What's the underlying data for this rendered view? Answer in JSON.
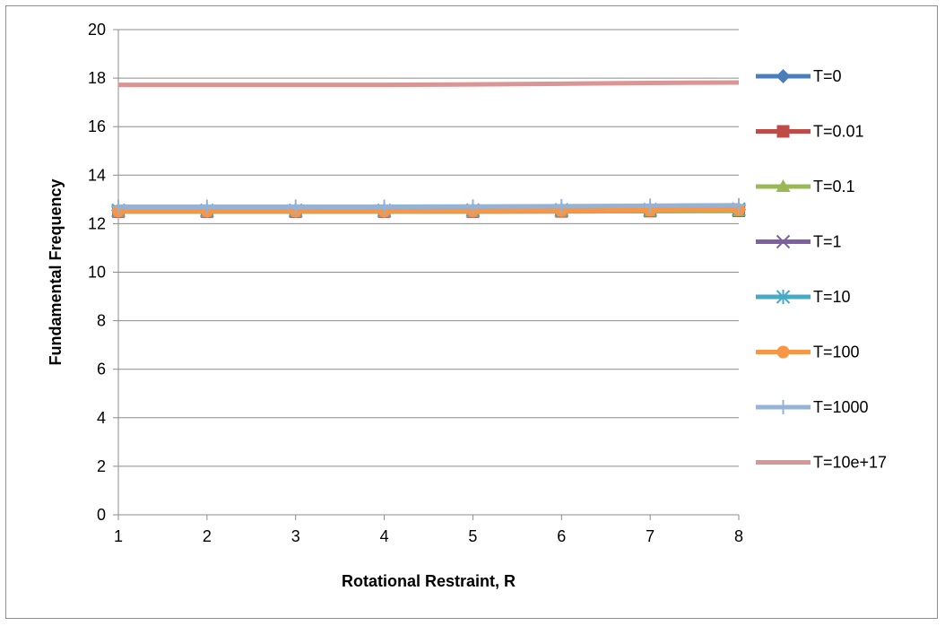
{
  "chart_data": {
    "type": "line",
    "title": "",
    "xlabel": "Rotational Restraint, R",
    "ylabel": "Fundamental Frequency",
    "xlim": [
      1,
      8
    ],
    "ylim": [
      0,
      20
    ],
    "x_ticks": [
      "1",
      "2",
      "3",
      "4",
      "5",
      "6",
      "7",
      "8"
    ],
    "y_ticks": [
      "0",
      "2",
      "4",
      "6",
      "8",
      "10",
      "12",
      "14",
      "16",
      "18",
      "20"
    ],
    "grid": "horizontal",
    "legend_position": "right",
    "x": [
      1,
      2,
      3,
      4,
      5,
      6,
      7,
      8
    ],
    "series": [
      {
        "name": "T=0",
        "color": "#4a7ebb",
        "marker": "diamond",
        "values": [
          12.55,
          12.55,
          12.55,
          12.55,
          12.55,
          12.56,
          12.57,
          12.58
        ]
      },
      {
        "name": "T=0.01",
        "color": "#be4b48",
        "marker": "square",
        "values": [
          12.5,
          12.5,
          12.5,
          12.5,
          12.5,
          12.51,
          12.52,
          12.53
        ]
      },
      {
        "name": "T=0.1",
        "color": "#98b954",
        "marker": "triangle",
        "values": [
          12.5,
          12.5,
          12.5,
          12.5,
          12.5,
          12.51,
          12.52,
          12.53
        ]
      },
      {
        "name": "T=1",
        "color": "#7d60a0",
        "marker": "x",
        "values": [
          12.55,
          12.55,
          12.55,
          12.55,
          12.56,
          12.57,
          12.58,
          12.6
        ]
      },
      {
        "name": "T=10",
        "color": "#46aac5",
        "marker": "star",
        "values": [
          12.55,
          12.55,
          12.55,
          12.55,
          12.56,
          12.57,
          12.58,
          12.6
        ]
      },
      {
        "name": "T=100",
        "color": "#f79646",
        "marker": "circle",
        "values": [
          12.52,
          12.52,
          12.52,
          12.52,
          12.53,
          12.54,
          12.56,
          12.58
        ]
      },
      {
        "name": "T=1000",
        "color": "#95b3d7",
        "marker": "plus",
        "values": [
          12.7,
          12.7,
          12.7,
          12.7,
          12.71,
          12.72,
          12.74,
          12.76
        ]
      },
      {
        "name": "T=10e+17",
        "color": "#d99694",
        "marker": "none",
        "values": [
          17.72,
          17.72,
          17.72,
          17.72,
          17.74,
          17.77,
          17.8,
          17.82
        ]
      }
    ]
  }
}
